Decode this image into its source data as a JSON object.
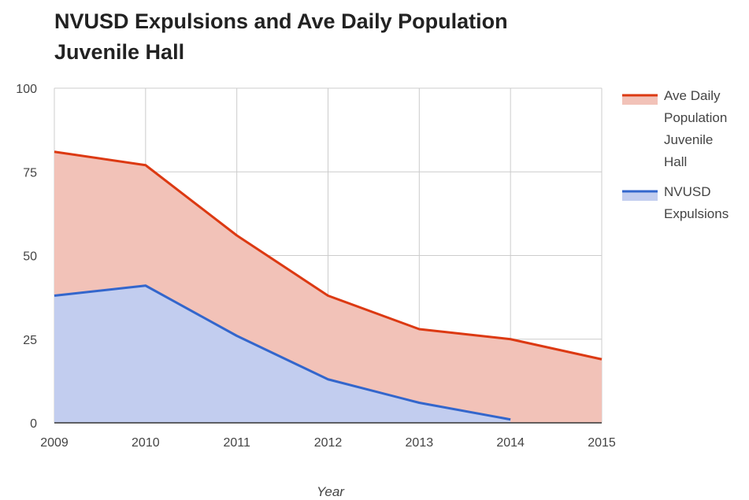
{
  "title_lines": [
    "NVUSD Expulsions and Ave Daily Population",
    "Juvenile Hall"
  ],
  "chart_data": {
    "type": "area",
    "title": "NVUSD Expulsions and Ave Daily Population Juvenile Hall",
    "xlabel": "Year",
    "ylabel": "",
    "x": [
      2009,
      2010,
      2011,
      2012,
      2013,
      2014,
      2015
    ],
    "ylim": [
      0,
      100
    ],
    "yticks": [
      0,
      25,
      50,
      75,
      100
    ],
    "grid": true,
    "legend_position": "right",
    "series": [
      {
        "name": "Ave Daily Population Juvenile Hall",
        "legend_lines": [
          "Ave Daily",
          "Population",
          "Juvenile",
          "Hall"
        ],
        "values": [
          81,
          77,
          56,
          38,
          28,
          25,
          19
        ],
        "line_color": "#dc3912",
        "fill_color": "#f2c2b8"
      },
      {
        "name": "NVUSD Expulsions",
        "legend_lines": [
          "NVUSD",
          "Expulsions"
        ],
        "values": [
          38,
          41,
          26,
          13,
          6,
          1,
          null
        ],
        "line_color": "#3366cc",
        "fill_color": "#c2cdef"
      }
    ]
  }
}
